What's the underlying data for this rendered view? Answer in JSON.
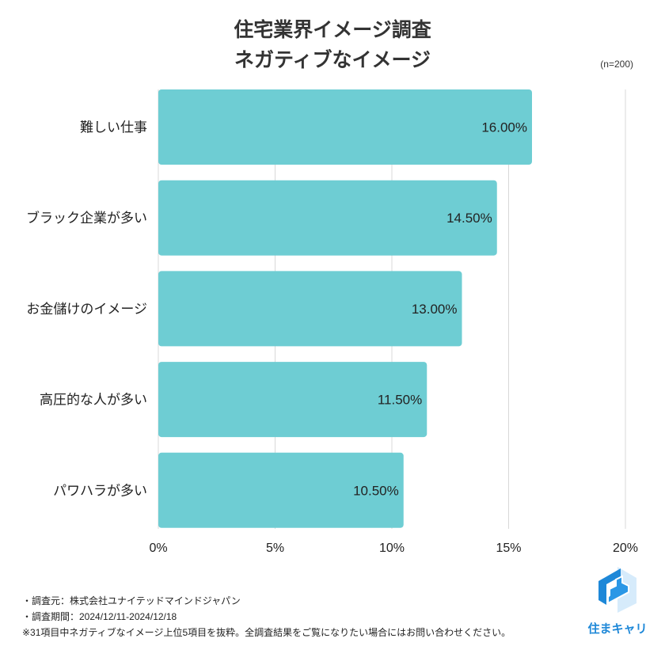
{
  "chart_data": {
    "type": "bar",
    "orientation": "horizontal",
    "title": "住宅業界イメージ調査",
    "subtitle": "ネガティブなイメージ",
    "sample_note": "(n=200)",
    "categories": [
      "難しい仕事",
      "ブラック企業が多い",
      "お金儲けのイメージ",
      "高圧的な人が多い",
      "パワハラが多い"
    ],
    "values": [
      16.0,
      14.5,
      13.0,
      11.5,
      10.5
    ],
    "data_labels": [
      "16.00%",
      "14.50%",
      "13.00%",
      "11.50%",
      "10.50%"
    ],
    "xlim": [
      0,
      20
    ],
    "xticks": [
      0,
      5,
      10,
      15,
      20
    ],
    "xtick_labels": [
      "0%",
      "5%",
      "10%",
      "15%",
      "20%"
    ],
    "grid": true,
    "bar_color": "#6ecdd3"
  },
  "footer": {
    "source": "・調査元：株式会社ユナイテッドマインドジャパン",
    "period": "・調査期間：2024/12/11-2024/12/18",
    "note": "※31項目中ネガティブなイメージ上位5項目を抜粋。全調査結果をご覧になりたい場合にはお問い合わせください。"
  },
  "logo": {
    "text": "住まキャリ",
    "color": "#1e88d8"
  }
}
